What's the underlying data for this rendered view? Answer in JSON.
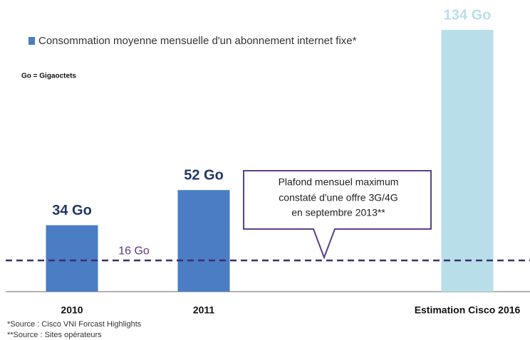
{
  "chart_data": {
    "type": "bar",
    "legend": "Consommation moyenne mensuelle d'un abonnement internet fixe*",
    "unit_note": "Go = Gigaoctets",
    "categories": [
      "2010",
      "2011",
      "Estimation Cisco 2016"
    ],
    "values": [
      34,
      52,
      134
    ],
    "value_labels": [
      "34 Go",
      "52 Go",
      "134 Go"
    ],
    "colors": [
      "#4a7dc4",
      "#4a7dc4",
      "#b8dfe9"
    ],
    "value_label_colors": [
      "#1f3864",
      "#1f3864",
      "#b8dfe9"
    ],
    "reference_line": {
      "value": 16,
      "label": "16 Go",
      "color": "#3e2f6b"
    },
    "callout": [
      "Plafond mensuel maximum",
      "constaté d'une offre 3G/4G",
      "en septembre 2013**"
    ],
    "notes": [
      "*Source : Cisco VNI Forcast Highlights",
      "**Source : Sites opérateurs"
    ]
  }
}
